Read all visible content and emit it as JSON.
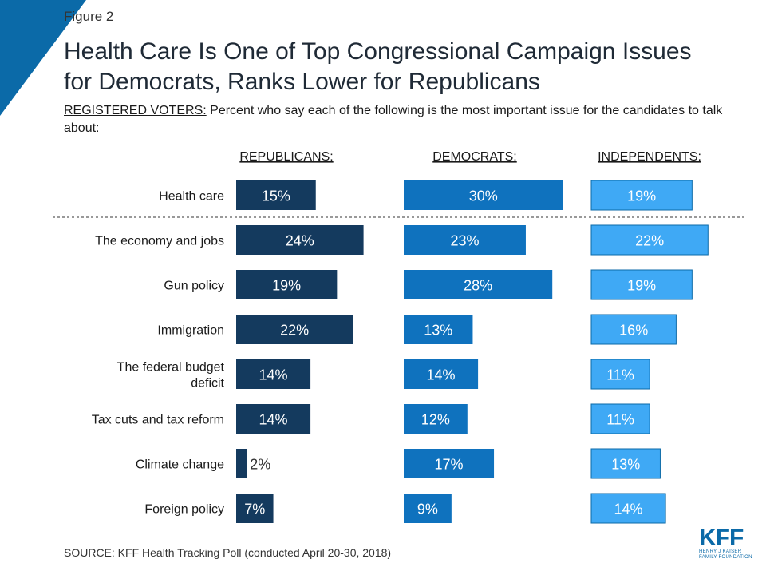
{
  "figure_label": "Figure 2",
  "title_line1": "Health Care Is One of Top Congressional Campaign Issues",
  "title_line2": "for Democrats, Ranks Lower for Republicans",
  "subtitle_lead": "REGISTERED VOTERS:",
  "subtitle_rest": " Percent who say each of the following is the most important issue for the candidates to talk about:",
  "source": "SOURCE: KFF Health Tracking Poll (conducted April 20-30, 2018)",
  "logo": {
    "text": "KFF",
    "line1": "HENRY J KAISER",
    "line2": "FAMILY FOUNDATION"
  },
  "colors": {
    "corner": "#0b6aa8",
    "republicans": "#143a5e",
    "democrats": "#0f72be",
    "independents": "#3fa9f5",
    "logo": "#0b6aa8"
  },
  "chart_data": {
    "type": "bar",
    "orientation": "horizontal",
    "layout": "small-multiples",
    "categories": [
      "Health care",
      "The economy and jobs",
      "Gun policy",
      "Immigration",
      "The federal budget deficit",
      "Tax cuts and tax reform",
      "Climate change",
      "Foreign policy"
    ],
    "category_label_lines": [
      [
        "Health care"
      ],
      [
        "The economy and jobs"
      ],
      [
        "Gun policy"
      ],
      [
        "Immigration"
      ],
      [
        "The federal budget",
        "deficit"
      ],
      [
        "Tax cuts and tax reform"
      ],
      [
        "Climate change"
      ],
      [
        "Foreign policy"
      ]
    ],
    "series": [
      {
        "name": "REPUBLICANS:",
        "values": [
          15,
          24,
          19,
          22,
          14,
          14,
          2,
          7
        ],
        "labels": [
          "15%",
          "24%",
          "19%",
          "22%",
          "14%",
          "14%",
          "2%",
          "7%"
        ]
      },
      {
        "name": "DEMOCRATS:",
        "values": [
          30,
          23,
          28,
          13,
          14,
          12,
          17,
          9
        ],
        "labels": [
          "30%",
          "23%",
          "28%",
          "13%",
          "14%",
          "12%",
          "17%",
          "9%"
        ]
      },
      {
        "name": "INDEPENDENTS:",
        "values": [
          19,
          22,
          19,
          16,
          11,
          11,
          13,
          14
        ],
        "labels": [
          "19%",
          "22%",
          "19%",
          "16%",
          "11%",
          "11%",
          "13%",
          "14%"
        ]
      }
    ],
    "separator_after_category": 0
  }
}
